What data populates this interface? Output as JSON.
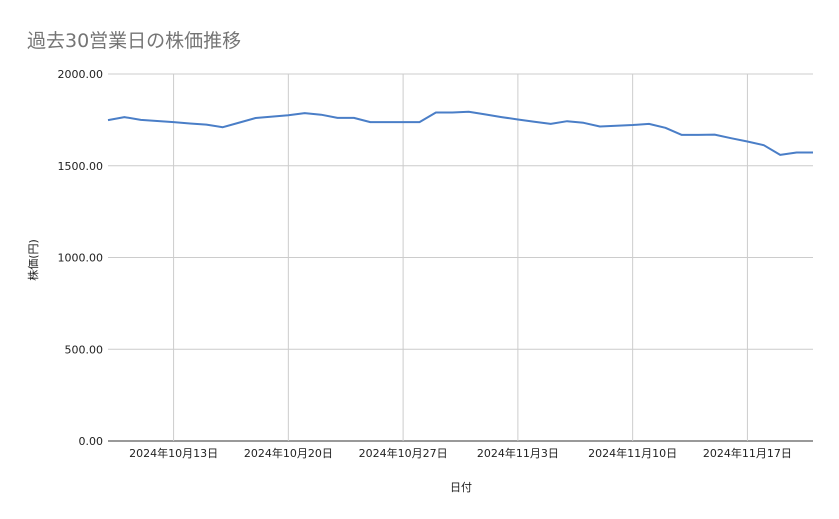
{
  "chart_data": {
    "type": "line",
    "title": "過去30営業日の株価推移",
    "xlabel": "日付",
    "ylabel": "株価(円)",
    "ylim": [
      0,
      2000
    ],
    "yticks": [
      "0.00",
      "500.00",
      "1000.00",
      "1500.00",
      "2000.00"
    ],
    "xticks": [
      {
        "date": "2024-10-13",
        "label": "2024年10月13日"
      },
      {
        "date": "2024-10-20",
        "label": "2024年10月20日"
      },
      {
        "date": "2024-10-27",
        "label": "2024年10月27日"
      },
      {
        "date": "2024-11-03",
        "label": "2024年11月3日"
      },
      {
        "date": "2024-11-10",
        "label": "2024年11月10日"
      },
      {
        "date": "2024-11-17",
        "label": "2024年11月17日"
      }
    ],
    "xlim": [
      "2024-10-09",
      "2024-11-21"
    ],
    "grid": true,
    "line_color": "#4a7ec7",
    "series": [
      {
        "x": [
          "2024-10-09",
          "2024-10-10",
          "2024-10-11",
          "2024-10-12",
          "2024-10-13",
          "2024-10-14",
          "2024-10-15",
          "2024-10-16",
          "2024-10-17",
          "2024-10-18",
          "2024-10-19",
          "2024-10-20",
          "2024-10-21",
          "2024-10-22",
          "2024-10-23",
          "2024-10-24",
          "2024-10-25",
          "2024-10-26",
          "2024-10-27",
          "2024-10-28",
          "2024-10-29",
          "2024-10-30",
          "2024-10-31",
          "2024-11-01",
          "2024-11-02",
          "2024-11-03",
          "2024-11-04",
          "2024-11-05",
          "2024-11-06",
          "2024-11-07",
          "2024-11-08",
          "2024-11-09",
          "2024-11-10",
          "2024-11-11",
          "2024-11-12",
          "2024-11-13",
          "2024-11-14",
          "2024-11-15",
          "2024-11-16",
          "2024-11-17",
          "2024-11-18",
          "2024-11-19",
          "2024-11-20",
          "2024-11-21"
        ],
        "values": [
          1749,
          1765,
          1750,
          1744,
          1738,
          1730,
          1724,
          1710,
          1735,
          1760,
          1768,
          1775,
          1787,
          1778,
          1761,
          1761,
          1738,
          1738,
          1738,
          1738,
          1790,
          1790,
          1794,
          1780,
          1765,
          1752,
          1740,
          1728,
          1743,
          1734,
          1714,
          1718,
          1722,
          1728,
          1707,
          1668,
          1668,
          1670,
          1650,
          1632,
          1612,
          1559,
          1572,
          1572
        ]
      }
    ]
  }
}
